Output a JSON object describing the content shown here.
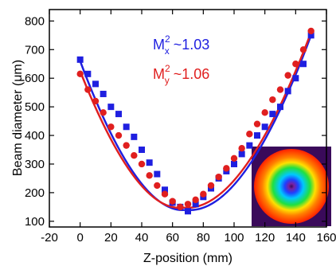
{
  "chart_data": {
    "type": "scatter",
    "xlabel": "Z-position (mm)",
    "ylabel": "Beam diameter (μm)",
    "xlim": [
      -20,
      160
    ],
    "ylim": [
      80,
      840
    ],
    "xticks": [
      -20,
      0,
      20,
      40,
      60,
      80,
      100,
      120,
      140,
      160
    ],
    "yticks": [
      100,
      200,
      300,
      400,
      500,
      600,
      700,
      800
    ],
    "grid": false,
    "series": [
      {
        "axis": "x",
        "color": "#1f1fe0",
        "marker": "square",
        "x": [
          0,
          5,
          10,
          15,
          20,
          25,
          30,
          35,
          40,
          45,
          50,
          55,
          60,
          65,
          70,
          75,
          80,
          85,
          90,
          95,
          100,
          105,
          110,
          115,
          120,
          125,
          130,
          135,
          140,
          145,
          150
        ],
        "y": [
          665,
          615,
          580,
          545,
          500,
          475,
          430,
          395,
          350,
          305,
          265,
          210,
          165,
          150,
          135,
          160,
          185,
          215,
          250,
          275,
          300,
          335,
          365,
          400,
          430,
          475,
          500,
          555,
          600,
          650,
          750
        ],
        "fit": {
          "x": [
            0,
            69,
            150
          ],
          "y": [
            660,
            140,
            750
          ]
        }
      },
      {
        "axis": "y",
        "color": "#e01f1f",
        "marker": "circle",
        "x": [
          0,
          5,
          10,
          15,
          20,
          25,
          30,
          35,
          40,
          45,
          50,
          55,
          60,
          65,
          70,
          75,
          80,
          85,
          90,
          95,
          100,
          105,
          110,
          115,
          120,
          125,
          130,
          135,
          140,
          145,
          150
        ],
        "y": [
          615,
          560,
          520,
          480,
          430,
          400,
          365,
          330,
          300,
          260,
          225,
          195,
          170,
          150,
          160,
          175,
          195,
          225,
          255,
          285,
          320,
          355,
          405,
          440,
          480,
          525,
          560,
          610,
          650,
          700,
          765
        ],
        "fit": {
          "x": [
            0,
            67,
            150
          ],
          "y": [
            625,
            148,
            760
          ]
        }
      }
    ],
    "annotations": [
      {
        "base": "M",
        "sup": "2",
        "sub": "x",
        "text": " ~1.03",
        "color": "#1f1fe0"
      },
      {
        "base": "M",
        "sup": "2",
        "sub": "y",
        "text": " ~1.06",
        "color": "#e01f1f"
      }
    ],
    "inset": {
      "kind": "beam-profile-image",
      "colors": [
        "#3a0a5a",
        "#7a1fa0",
        "#2040ff",
        "#00c8ff",
        "#20e040",
        "#ffe000",
        "#ff8000",
        "#ff2000"
      ]
    }
  }
}
